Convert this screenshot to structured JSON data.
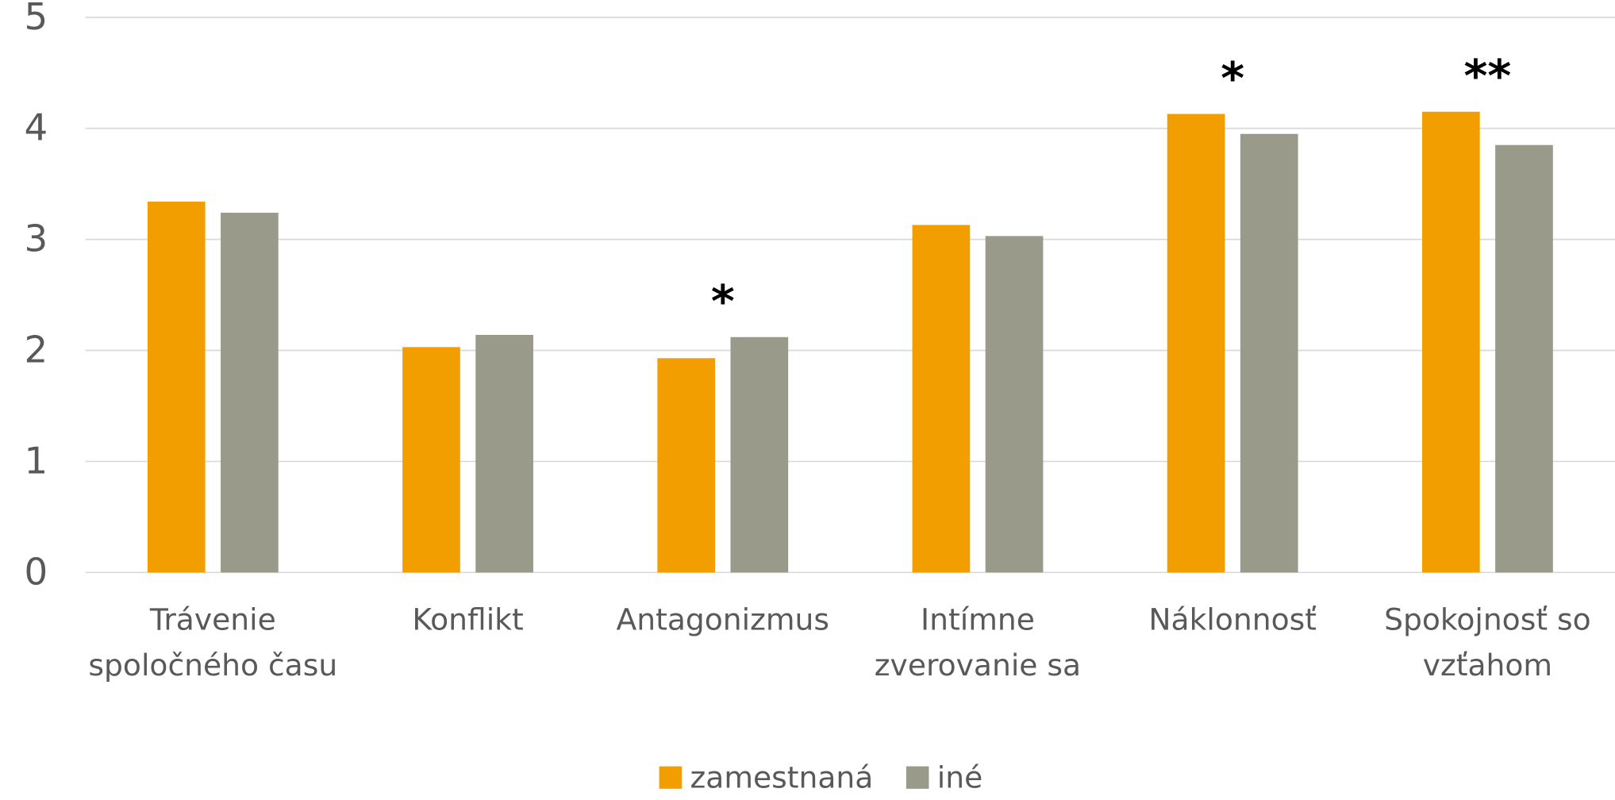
{
  "chart_data": {
    "type": "bar",
    "categories": [
      "Trávenie spoločného času",
      "Konflikt",
      "Antagonizmus",
      "Intímne zverovanie sa",
      "Náklonnosť",
      "Spokojnosť so vzťahom"
    ],
    "series": [
      {
        "name": "zamestnaná",
        "color": "#f29e00",
        "values": [
          3.34,
          2.03,
          1.93,
          3.13,
          4.13,
          4.15
        ]
      },
      {
        "name": "iné",
        "color": "#9a9a8a",
        "values": [
          3.24,
          2.14,
          2.12,
          3.03,
          3.95,
          3.85
        ]
      }
    ],
    "annotations": [
      null,
      null,
      "*",
      null,
      "*",
      "**"
    ],
    "ylim": [
      0,
      5
    ],
    "yticks": [
      0,
      1,
      2,
      3,
      4,
      5
    ],
    "grid": true,
    "legend": "bottom"
  }
}
